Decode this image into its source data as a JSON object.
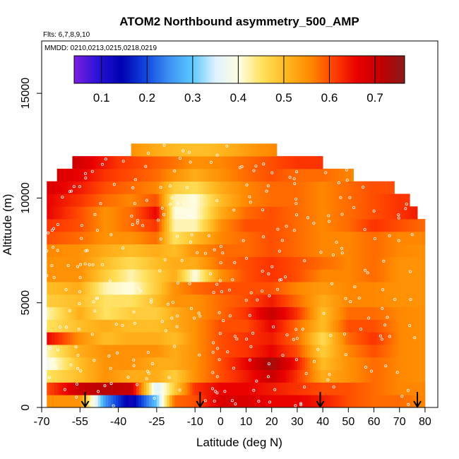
{
  "chart_data": {
    "type": "heatmap",
    "title": "ATOM2 Northbound asymmetry_500_AMP",
    "flights_note": "Flts: 6,7,8,9,10",
    "dates_note": "MMDD: 0210,0213,0215,0218,0219",
    "xlabel": "Latitude (deg N)",
    "ylabel": "Altitude (m)",
    "xlim": [
      -70,
      85
    ],
    "ylim": [
      0,
      17500
    ],
    "xticks": [
      -70,
      -55,
      -40,
      -25,
      -10,
      0,
      10,
      20,
      30,
      40,
      50,
      60,
      70,
      80
    ],
    "xtick_labels": [
      "-70",
      "-55",
      "-40",
      "-25",
      "-10",
      "0",
      "10",
      "20",
      "30",
      "40",
      "50",
      "60",
      "70",
      "80"
    ],
    "yticks": [
      0,
      5000,
      10000,
      15000
    ],
    "ytick_labels": [
      "0",
      "5000",
      "10000",
      "15000"
    ],
    "colorbar": {
      "range": [
        0.04,
        0.765
      ],
      "ticks": [
        0.1,
        0.2,
        0.3,
        0.4,
        0.5,
        0.6,
        0.7
      ],
      "tick_labels": [
        "0.1",
        "0.2",
        "0.3",
        "0.4",
        "0.5",
        "0.6",
        "0.7"
      ],
      "colors": [
        "#7b1fe0",
        "#2a12d8",
        "#0000b0",
        "#1044e0",
        "#3d8ff2",
        "#5ac8ff",
        "#dff2ff",
        "#fffde0",
        "#ffe05a",
        "#ffb820",
        "#ff8a00",
        "#ff4000",
        "#e80000",
        "#c00000",
        "#8b1a1a"
      ]
    },
    "flight_markers_lat": [
      -53,
      -8,
      39,
      77
    ],
    "altitude_bands": [
      {
        "alt": 300,
        "lat_range": [
          -68,
          80
        ],
        "lat_points": [
          -68,
          -55,
          -45,
          -35,
          -25,
          -18,
          -10,
          0,
          10,
          20,
          30,
          40,
          50,
          60,
          70,
          80
        ],
        "values": [
          0.55,
          0.55,
          0.25,
          0.12,
          0.3,
          0.58,
          0.6,
          0.68,
          0.68,
          0.66,
          0.66,
          0.64,
          0.6,
          0.58,
          0.58,
          0.56
        ]
      },
      {
        "alt": 900,
        "lat_range": [
          -68,
          80
        ],
        "lat_points": [
          -68,
          -55,
          -45,
          -35,
          -25,
          -18,
          -10,
          0,
          10,
          20,
          30,
          40,
          50,
          60,
          70,
          80
        ],
        "values": [
          0.6,
          0.7,
          0.72,
          0.7,
          0.35,
          0.48,
          0.62,
          0.66,
          0.66,
          0.64,
          0.62,
          0.6,
          0.6,
          0.58,
          0.56,
          0.56
        ]
      },
      {
        "alt": 1500,
        "lat_range": [
          -68,
          80
        ],
        "lat_points": [
          -68,
          -55,
          -45,
          -35,
          -25,
          -18,
          -10,
          0,
          10,
          20,
          30,
          40,
          50,
          60,
          70,
          80
        ],
        "values": [
          0.45,
          0.5,
          0.55,
          0.52,
          0.52,
          0.48,
          0.55,
          0.6,
          0.64,
          0.7,
          0.62,
          0.52,
          0.55,
          0.58,
          0.56,
          0.55
        ]
      },
      {
        "alt": 2100,
        "lat_range": [
          -68,
          80
        ],
        "lat_points": [
          -68,
          -55,
          -45,
          -35,
          -25,
          -18,
          -10,
          0,
          10,
          20,
          30,
          40,
          50,
          60,
          70,
          80
        ],
        "values": [
          0.38,
          0.5,
          0.55,
          0.55,
          0.52,
          0.52,
          0.55,
          0.6,
          0.66,
          0.74,
          0.64,
          0.5,
          0.55,
          0.58,
          0.56,
          0.55
        ]
      },
      {
        "alt": 2700,
        "lat_range": [
          -68,
          80
        ],
        "lat_points": [
          -68,
          -55,
          -45,
          -35,
          -25,
          -18,
          -10,
          0,
          10,
          20,
          30,
          40,
          50,
          60,
          70,
          80
        ],
        "values": [
          0.42,
          0.52,
          0.55,
          0.55,
          0.55,
          0.52,
          0.55,
          0.6,
          0.62,
          0.66,
          0.6,
          0.48,
          0.56,
          0.6,
          0.56,
          0.55
        ]
      },
      {
        "alt": 3300,
        "lat_range": [
          -68,
          80
        ],
        "lat_points": [
          -68,
          -55,
          -45,
          -35,
          -25,
          -18,
          -10,
          0,
          10,
          20,
          30,
          40,
          50,
          60,
          70,
          80
        ],
        "values": [
          0.66,
          0.55,
          0.5,
          0.52,
          0.52,
          0.5,
          0.55,
          0.6,
          0.62,
          0.64,
          0.58,
          0.46,
          0.58,
          0.62,
          0.56,
          0.55
        ]
      },
      {
        "alt": 3900,
        "lat_range": [
          -68,
          80
        ],
        "lat_points": [
          -68,
          -55,
          -45,
          -35,
          -25,
          -18,
          -10,
          0,
          10,
          20,
          30,
          40,
          50,
          60,
          70,
          80
        ],
        "values": [
          0.45,
          0.5,
          0.52,
          0.5,
          0.5,
          0.52,
          0.55,
          0.6,
          0.6,
          0.66,
          0.58,
          0.5,
          0.6,
          0.6,
          0.56,
          0.55
        ]
      },
      {
        "alt": 4500,
        "lat_range": [
          -68,
          80
        ],
        "lat_points": [
          -68,
          -55,
          -45,
          -35,
          -25,
          -18,
          -10,
          0,
          10,
          20,
          30,
          40,
          50,
          60,
          70,
          80
        ],
        "values": [
          0.42,
          0.52,
          0.45,
          0.48,
          0.48,
          0.52,
          0.55,
          0.58,
          0.62,
          0.7,
          0.62,
          0.5,
          0.58,
          0.58,
          0.56,
          0.55
        ]
      },
      {
        "alt": 5100,
        "lat_range": [
          -68,
          80
        ],
        "lat_points": [
          -68,
          -55,
          -45,
          -35,
          -25,
          -18,
          -10,
          0,
          10,
          20,
          30,
          40,
          50,
          60,
          70,
          80
        ],
        "values": [
          0.48,
          0.5,
          0.45,
          0.45,
          0.5,
          0.55,
          0.55,
          0.58,
          0.6,
          0.64,
          0.58,
          0.52,
          0.56,
          0.56,
          0.55,
          0.55
        ]
      },
      {
        "alt": 5700,
        "lat_range": [
          -68,
          80
        ],
        "lat_points": [
          -68,
          -55,
          -45,
          -35,
          -25,
          -18,
          -10,
          0,
          10,
          20,
          30,
          40,
          50,
          60,
          70,
          80
        ],
        "values": [
          0.5,
          0.52,
          0.42,
          0.4,
          0.48,
          0.55,
          0.58,
          0.6,
          0.6,
          0.6,
          0.56,
          0.54,
          0.56,
          0.56,
          0.55,
          0.55
        ]
      },
      {
        "alt": 6300,
        "lat_range": [
          -68,
          80
        ],
        "lat_points": [
          -68,
          -55,
          -45,
          -35,
          -25,
          -18,
          -10,
          0,
          10,
          20,
          30,
          40,
          50,
          60,
          70,
          80
        ],
        "values": [
          0.55,
          0.55,
          0.48,
          0.42,
          0.48,
          0.52,
          0.4,
          0.55,
          0.6,
          0.62,
          0.6,
          0.56,
          0.56,
          0.58,
          0.55,
          0.55
        ]
      },
      {
        "alt": 6900,
        "lat_range": [
          -68,
          80
        ],
        "lat_points": [
          -68,
          -55,
          -45,
          -35,
          -25,
          -18,
          -10,
          0,
          10,
          20,
          30,
          40,
          50,
          60,
          70,
          80
        ],
        "values": [
          0.55,
          0.55,
          0.5,
          0.46,
          0.5,
          0.52,
          0.52,
          0.58,
          0.6,
          0.62,
          0.6,
          0.58,
          0.56,
          0.58,
          0.55,
          0.55
        ]
      },
      {
        "alt": 7500,
        "lat_range": [
          -68,
          80
        ],
        "lat_points": [
          -68,
          -55,
          -45,
          -35,
          -25,
          -18,
          -10,
          0,
          10,
          20,
          30,
          40,
          50,
          60,
          70,
          80
        ],
        "values": [
          0.56,
          0.55,
          0.52,
          0.5,
          0.52,
          0.5,
          0.55,
          0.58,
          0.58,
          0.6,
          0.58,
          0.56,
          0.56,
          0.58,
          0.56,
          0.55
        ]
      },
      {
        "alt": 8100,
        "lat_range": [
          -68,
          80
        ],
        "lat_points": [
          -68,
          -55,
          -45,
          -35,
          -25,
          -18,
          -10,
          0,
          10,
          20,
          30,
          40,
          50,
          60,
          70,
          80
        ],
        "values": [
          0.6,
          0.58,
          0.55,
          0.55,
          0.58,
          0.45,
          0.5,
          0.56,
          0.58,
          0.6,
          0.58,
          0.56,
          0.56,
          0.58,
          0.56,
          0.56
        ]
      },
      {
        "alt": 8700,
        "lat_range": [
          -68,
          80
        ],
        "lat_points": [
          -68,
          -55,
          -45,
          -35,
          -25,
          -18,
          -10,
          0,
          10,
          20,
          30,
          40,
          50,
          60,
          70,
          80
        ],
        "values": [
          0.62,
          0.6,
          0.55,
          0.58,
          0.62,
          0.42,
          0.42,
          0.55,
          0.6,
          0.6,
          0.58,
          0.56,
          0.58,
          0.62,
          0.6,
          0.58
        ]
      },
      {
        "alt": 9300,
        "lat_range": [
          -68,
          77
        ],
        "lat_points": [
          -68,
          -55,
          -45,
          -35,
          -25,
          -18,
          -10,
          0,
          10,
          20,
          30,
          40,
          50,
          60,
          70,
          77
        ],
        "values": [
          0.66,
          0.6,
          0.55,
          0.58,
          0.66,
          0.4,
          0.4,
          0.52,
          0.58,
          0.6,
          0.58,
          0.56,
          0.58,
          0.6,
          0.62,
          0.64
        ]
      },
      {
        "alt": 9900,
        "lat_range": [
          -68,
          74
        ],
        "lat_points": [
          -68,
          -55,
          -45,
          -35,
          -25,
          -18,
          -10,
          0,
          10,
          20,
          30,
          40,
          50,
          60,
          70,
          74
        ],
        "values": [
          0.66,
          0.62,
          0.58,
          0.56,
          0.6,
          0.42,
          0.4,
          0.5,
          0.56,
          0.58,
          0.58,
          0.56,
          0.58,
          0.6,
          0.62,
          0.62
        ]
      },
      {
        "alt": 10500,
        "lat_range": [
          -68,
          68
        ],
        "lat_points": [
          -68,
          -55,
          -45,
          -35,
          -25,
          -18,
          -10,
          0,
          10,
          20,
          30,
          40,
          50,
          60,
          68
        ],
        "values": [
          0.68,
          0.64,
          0.6,
          0.58,
          0.56,
          0.48,
          0.46,
          0.52,
          0.56,
          0.58,
          0.58,
          0.56,
          0.58,
          0.6,
          0.6
        ]
      },
      {
        "alt": 11100,
        "lat_range": [
          -64,
          52
        ],
        "lat_points": [
          -64,
          -55,
          -45,
          -35,
          -25,
          -18,
          -10,
          0,
          10,
          20,
          30,
          40,
          52
        ],
        "values": [
          0.68,
          0.66,
          0.62,
          0.6,
          0.58,
          0.55,
          0.52,
          0.55,
          0.58,
          0.6,
          0.58,
          0.58,
          0.56
        ]
      },
      {
        "alt": 11700,
        "lat_range": [
          -58,
          40
        ],
        "lat_points": [
          -58,
          -50,
          -40,
          -30,
          -20,
          -10,
          0,
          10,
          20,
          30,
          40
        ],
        "values": [
          0.7,
          0.66,
          0.62,
          0.6,
          0.58,
          0.55,
          0.56,
          0.58,
          0.6,
          0.62,
          0.62
        ]
      },
      {
        "alt": 12300,
        "lat_range": [
          -35,
          22
        ],
        "lat_points": [
          -35,
          -25,
          -15,
          -5,
          5,
          15,
          22
        ],
        "values": [
          0.55,
          0.52,
          0.5,
          0.5,
          0.52,
          0.55,
          0.56
        ]
      }
    ]
  }
}
